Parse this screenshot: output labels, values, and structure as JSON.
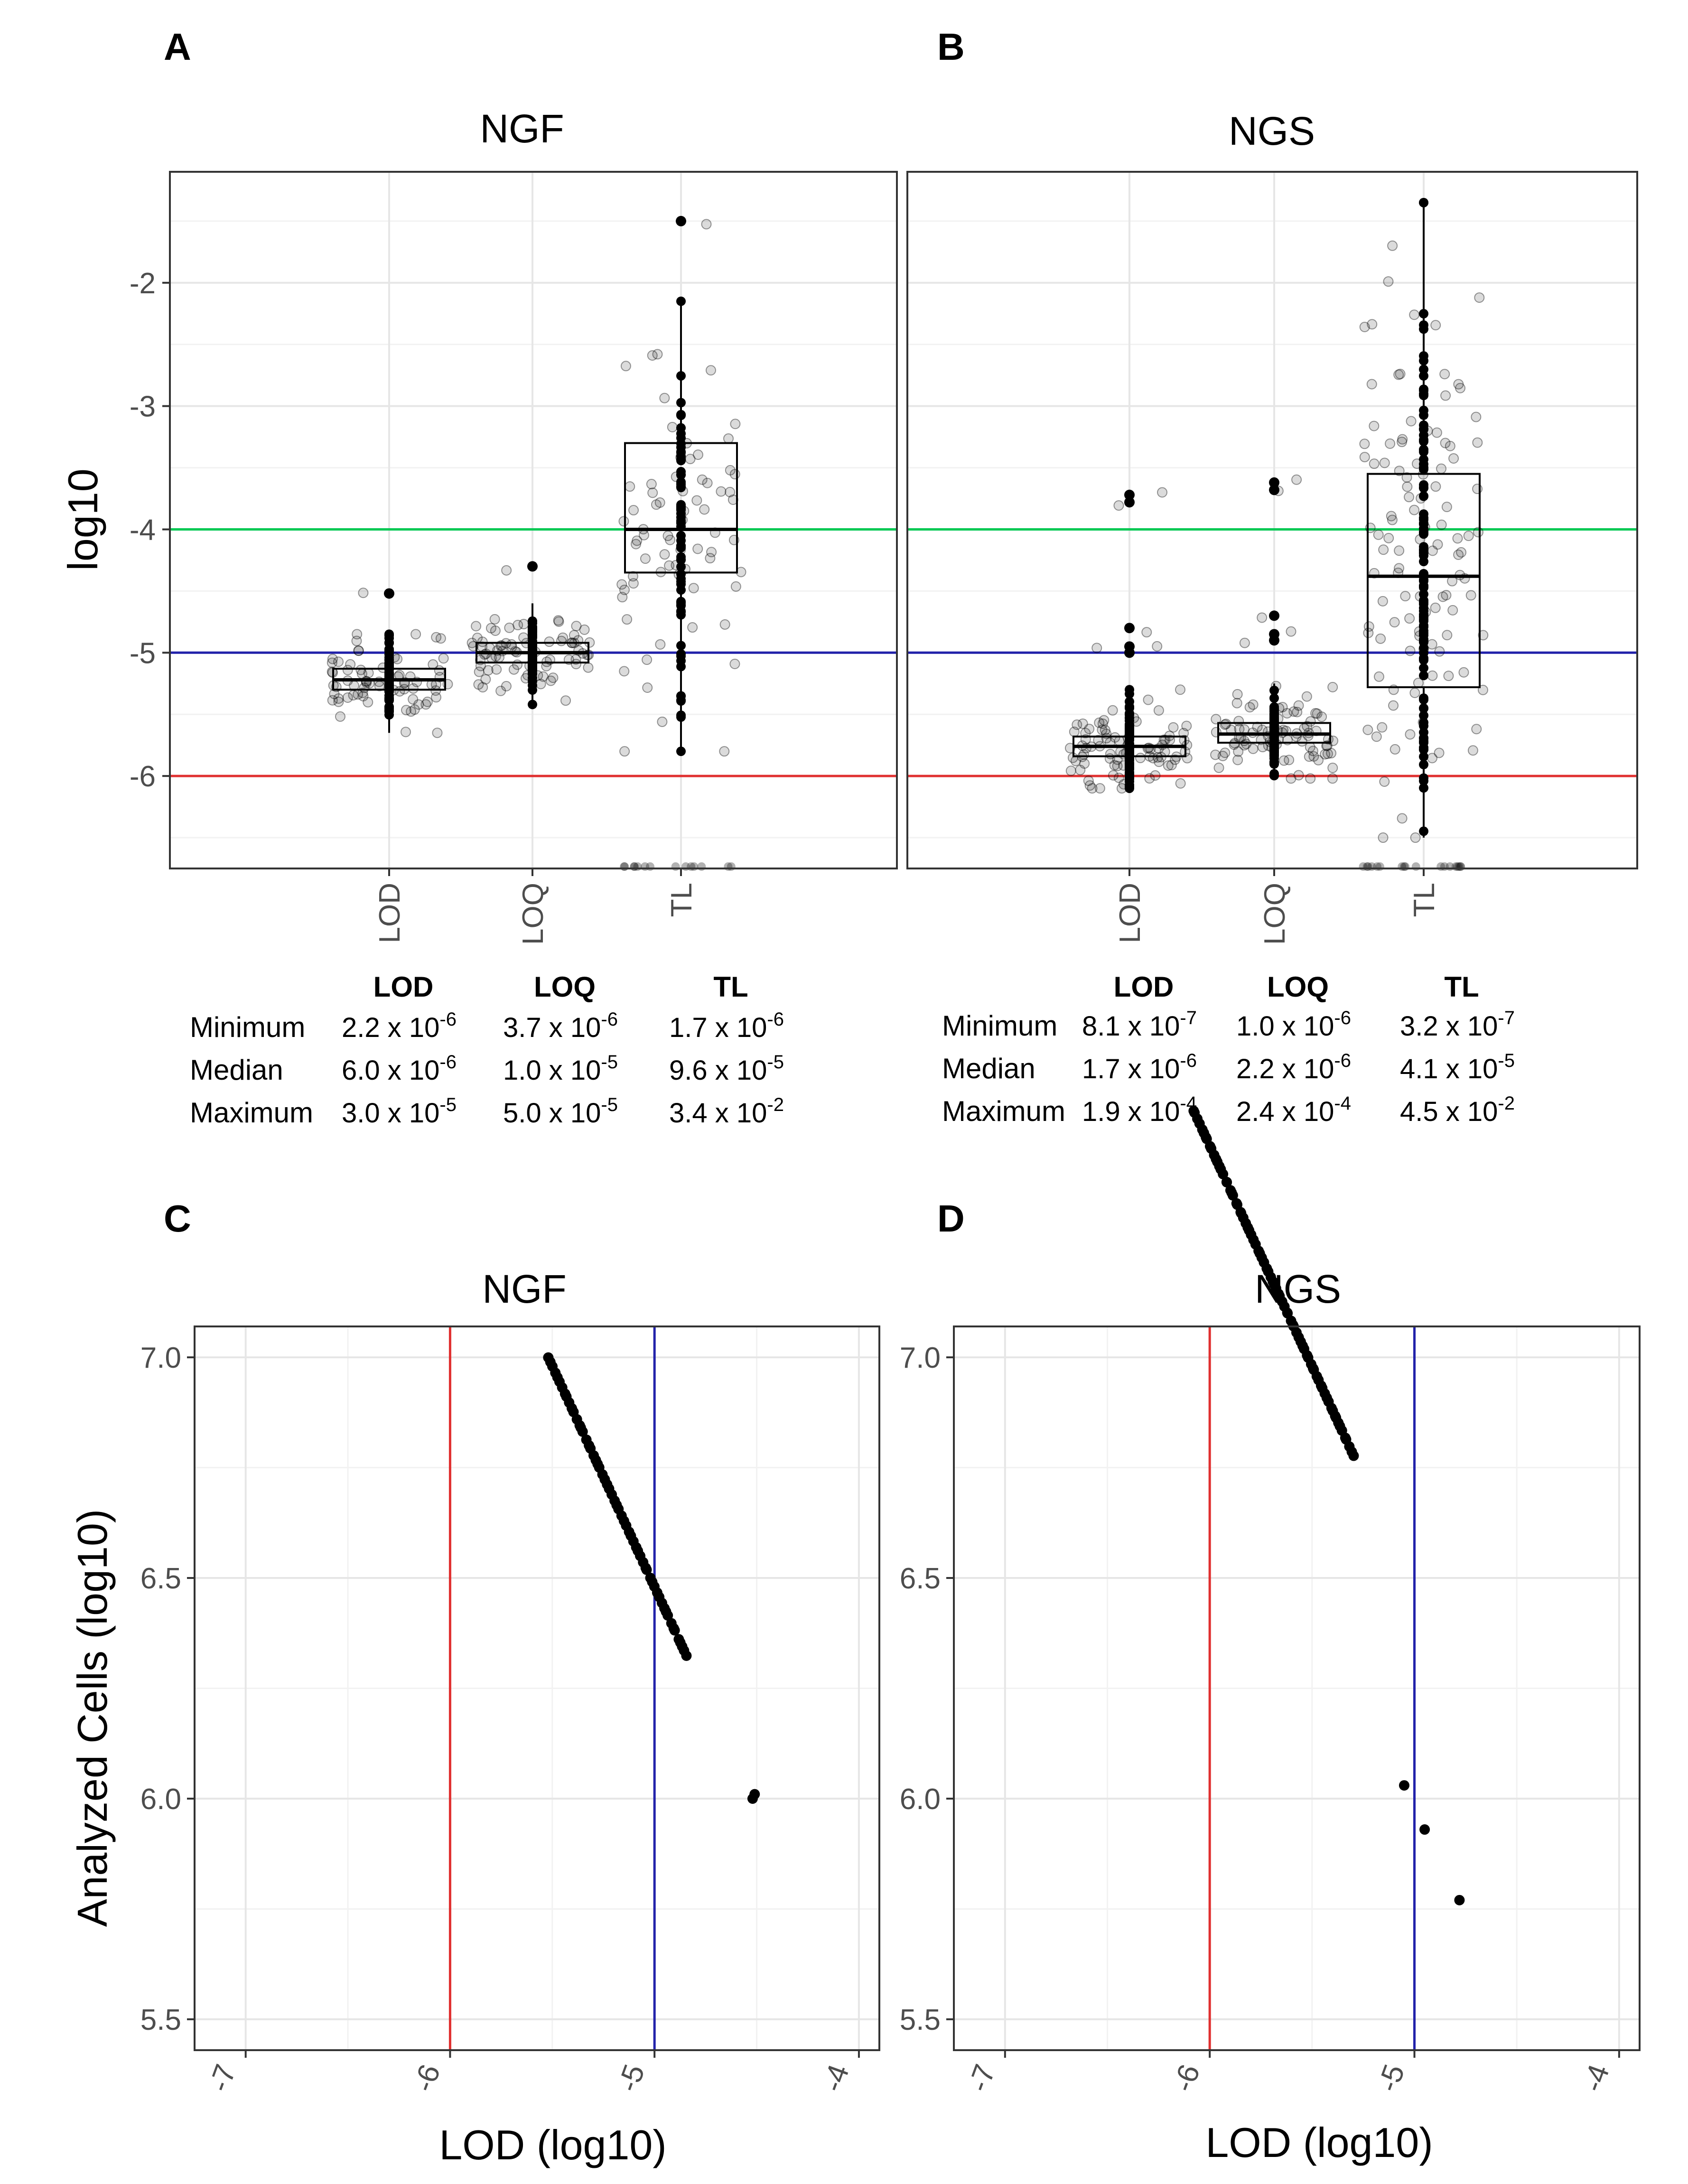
{
  "panels": {
    "A": {
      "letter": "A",
      "title": "NGF"
    },
    "B": {
      "letter": "B",
      "title": "NGS"
    },
    "C": {
      "letter": "C",
      "title": "NGF"
    },
    "D": {
      "letter": "D",
      "title": "NGS"
    }
  },
  "labels": {
    "y_top": "log10",
    "y_bottom": "Analyzed Cells (log10)",
    "x_bottom": "LOD (log10)"
  },
  "stats_tables": [
    {
      "headers": [
        "LOD",
        "LOQ",
        "TL"
      ],
      "rows": [
        {
          "label": "Minimum",
          "cells": [
            {
              "m": "2.2 x 10",
              "e": "-6"
            },
            {
              "m": "3.7 x 10",
              "e": "-6"
            },
            {
              "m": "1.7 x 10",
              "e": "-6"
            }
          ]
        },
        {
          "label": "Median",
          "cells": [
            {
              "m": "6.0 x 10",
              "e": "-6"
            },
            {
              "m": "1.0 x 10",
              "e": "-5"
            },
            {
              "m": "9.6 x 10",
              "e": "-5"
            }
          ]
        },
        {
          "label": "Maximum",
          "cells": [
            {
              "m": "3.0 x 10",
              "e": "-5"
            },
            {
              "m": "5.0 x 10",
              "e": "-5"
            },
            {
              "m": "3.4 x 10",
              "e": "-2"
            }
          ]
        }
      ]
    },
    {
      "headers": [
        "LOD",
        "LOQ",
        "TL"
      ],
      "rows": [
        {
          "label": "Minimum",
          "cells": [
            {
              "m": "8.1 x 10",
              "e": "-7"
            },
            {
              "m": "1.0 x 10",
              "e": "-6"
            },
            {
              "m": "3.2 x 10",
              "e": "-7"
            }
          ]
        },
        {
          "label": "Median",
          "cells": [
            {
              "m": "1.7 x 10",
              "e": "-6"
            },
            {
              "m": "2.2 x 10",
              "e": "-6"
            },
            {
              "m": "4.1 x 10",
              "e": "-5"
            }
          ]
        },
        {
          "label": "Maximum",
          "cells": [
            {
              "m": "1.9 x 10",
              "e": "-4"
            },
            {
              "m": "2.4 x 10",
              "e": "-4"
            },
            {
              "m": "4.5 x 10",
              "e": "-2"
            }
          ]
        }
      ]
    }
  ],
  "chart_data": [
    {
      "panel": "A",
      "type": "boxplot",
      "title": "NGF",
      "ylabel": "log10",
      "categories": [
        "LOD",
        "LOQ",
        "TL"
      ],
      "ylim": [
        -6.75,
        -1.1
      ],
      "yticks": [
        -6,
        -5,
        -4,
        -3,
        -2
      ],
      "hlines": [
        {
          "y": -4,
          "color": "#00c853"
        },
        {
          "y": -5,
          "color": "#2222aa"
        },
        {
          "y": -6,
          "color": "#e03030"
        }
      ],
      "boxes": [
        {
          "category": "LOD",
          "q1": -5.3,
          "median": -5.22,
          "q3": -5.13,
          "whisker_low": -5.65,
          "whisker_high": -4.85
        },
        {
          "category": "LOQ",
          "q1": -5.08,
          "median": -5.0,
          "q3": -4.92,
          "whisker_low": -5.4,
          "whisker_high": -4.6
        },
        {
          "category": "TL",
          "q1": -4.35,
          "median": -4.0,
          "q3": -3.3,
          "whisker_low": -5.78,
          "whisker_high": -2.15
        }
      ],
      "points": [
        {
          "category": "LOD",
          "count": 70,
          "center": -5.22,
          "spread": 0.16,
          "min": -5.65,
          "max": -4.85,
          "outliers": [
            -4.52
          ]
        },
        {
          "category": "LOQ",
          "count": 75,
          "center": -5.0,
          "spread": 0.14,
          "min": -5.42,
          "max": -4.6,
          "outliers": [
            -4.3
          ]
        },
        {
          "category": "TL",
          "count": 70,
          "center": -3.9,
          "spread": 0.7,
          "min": -5.8,
          "max": -2.15,
          "outliers": [
            -1.5
          ],
          "floor_points": 14
        }
      ]
    },
    {
      "panel": "B",
      "type": "boxplot",
      "title": "NGS",
      "ylabel": "",
      "categories": [
        "LOD",
        "LOQ",
        "TL"
      ],
      "ylim": [
        -6.75,
        -1.1
      ],
      "yticks": [
        -6,
        -5,
        -4,
        -3,
        -2
      ],
      "hlines": [
        {
          "y": -4,
          "color": "#00c853"
        },
        {
          "y": -5,
          "color": "#2222aa"
        },
        {
          "y": -6,
          "color": "#e03030"
        }
      ],
      "boxes": [
        {
          "category": "LOD",
          "q1": -5.84,
          "median": -5.76,
          "q3": -5.68,
          "whisker_low": -6.1,
          "whisker_high": -5.33
        },
        {
          "category": "LOQ",
          "q1": -5.73,
          "median": -5.66,
          "q3": -5.57,
          "whisker_low": -6.0,
          "whisker_high": -5.25
        },
        {
          "category": "TL",
          "q1": -5.28,
          "median": -4.38,
          "q3": -3.55,
          "whisker_low": -6.5,
          "whisker_high": -1.35
        }
      ],
      "points": [
        {
          "category": "LOD",
          "count": 85,
          "center": -5.76,
          "spread": 0.17,
          "min": -6.1,
          "max": -5.3,
          "outliers": [
            -3.72,
            -3.78,
            -4.8,
            -4.95,
            -5.0
          ]
        },
        {
          "category": "LOQ",
          "count": 85,
          "center": -5.66,
          "spread": 0.15,
          "min": -6.02,
          "max": -5.25,
          "outliers": [
            -3.62,
            -3.68,
            -4.7,
            -4.85,
            -4.9
          ]
        },
        {
          "category": "TL",
          "count": 110,
          "center": -4.3,
          "spread": 1.05,
          "min": -6.5,
          "max": -1.35,
          "outliers": [],
          "floor_points": 18
        }
      ]
    },
    {
      "panel": "C",
      "type": "scatter",
      "title": "NGF",
      "xlabel": "LOD (log10)",
      "ylabel": "Analyzed Cells (log10)",
      "xlim": [
        -7.25,
        -3.9
      ],
      "ylim": [
        5.43,
        7.07
      ],
      "xticks": [
        -7,
        -6,
        -5,
        -4
      ],
      "yticks": [
        5.5,
        6.0,
        6.5,
        7.0
      ],
      "vlines": [
        {
          "x": -6,
          "color": "#e03030"
        },
        {
          "x": -5,
          "color": "#2222aa"
        }
      ],
      "line_segment": {
        "x_start": -5.52,
        "x_end": -4.84,
        "count": 60
      },
      "extra_points": [
        {
          "x": -4.52,
          "y": 6.0
        },
        {
          "x": -4.51,
          "y": 6.01
        }
      ]
    },
    {
      "panel": "D",
      "type": "scatter",
      "title": "NGS",
      "xlabel": "LOD (log10)",
      "ylabel": "",
      "xlim": [
        -7.25,
        -3.9
      ],
      "ylim": [
        5.43,
        7.07
      ],
      "xticks": [
        -7,
        -6,
        -5,
        -4
      ],
      "yticks": [
        5.5,
        6.0,
        6.5,
        7.0
      ],
      "vlines": [
        {
          "x": -6,
          "color": "#e03030"
        },
        {
          "x": -5,
          "color": "#2222aa"
        }
      ],
      "line_segment": {
        "x_start": -6.08,
        "x_end": -5.3,
        "count": 80
      },
      "extra_points": [
        {
          "x": -5.05,
          "y": 6.03
        },
        {
          "x": -4.95,
          "y": 5.93
        },
        {
          "x": -4.78,
          "y": 5.77
        }
      ]
    }
  ]
}
